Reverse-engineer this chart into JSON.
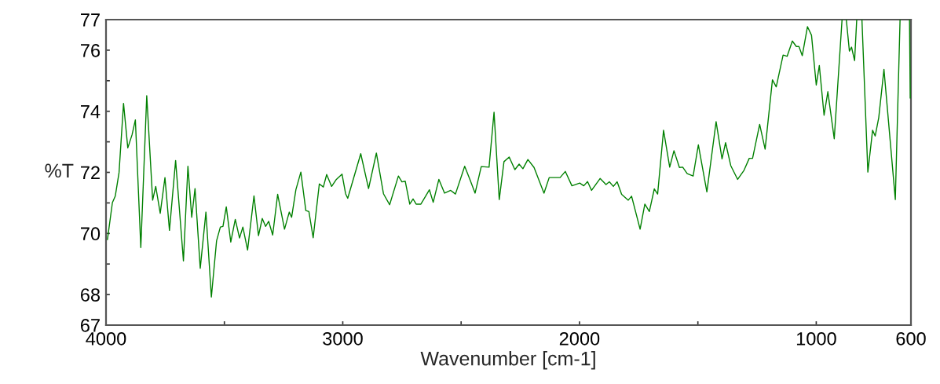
{
  "chart_data": {
    "type": "line",
    "xlabel": "Wavenumber [cm-1]",
    "ylabel": "%T",
    "xlim": [
      4000,
      600
    ],
    "ylim": [
      67,
      77
    ],
    "xticks": [
      4000,
      {
        "value": 3500,
        "label": null
      },
      3000,
      {
        "value": 2500,
        "label": null
      },
      2000,
      {
        "value": 1500,
        "label": null
      },
      1000,
      600
    ],
    "yticks": [
      67,
      68,
      {
        "value": 69,
        "label": null
      },
      70,
      {
        "value": 71,
        "label": null
      },
      72,
      {
        "value": 73,
        "label": null
      },
      74,
      {
        "value": 75,
        "label": null
      },
      76,
      77
    ],
    "x": [
      3994,
      3973,
      3961,
      3945,
      3926,
      3908,
      3890,
      3876,
      3853,
      3828,
      3803,
      3790,
      3771,
      3751,
      3732,
      3706,
      3673,
      3654,
      3638,
      3624,
      3602,
      3578,
      3555,
      3533,
      3517,
      3506,
      3492,
      3473,
      3454,
      3436,
      3422,
      3402,
      3375,
      3356,
      3340,
      3326,
      3313,
      3296,
      3275,
      3246,
      3226,
      3216,
      3198,
      3177,
      3156,
      3143,
      3125,
      3099,
      3082,
      3068,
      3047,
      3027,
      3003,
      2988,
      2979,
      2924,
      2891,
      2858,
      2828,
      2802,
      2765,
      2750,
      2736,
      2717,
      2703,
      2690,
      2670,
      2634,
      2618,
      2594,
      2570,
      2544,
      2524,
      2485,
      2463,
      2441,
      2415,
      2382,
      2361,
      2339,
      2319,
      2297,
      2273,
      2255,
      2239,
      2218,
      2192,
      2150,
      2128,
      2082,
      2060,
      2032,
      1999,
      1982,
      1966,
      1949,
      1913,
      1888,
      1874,
      1857,
      1841,
      1822,
      1794,
      1780,
      1744,
      1724,
      1705,
      1684,
      1670,
      1645,
      1619,
      1601,
      1578,
      1564,
      1545,
      1520,
      1498,
      1462,
      1423,
      1398,
      1383,
      1361,
      1332,
      1305,
      1283,
      1269,
      1239,
      1216,
      1185,
      1169,
      1140,
      1123,
      1101,
      1084,
      1073,
      1059,
      1037,
      1020,
      1000,
      987,
      967,
      951,
      924,
      891,
      882,
      873,
      860,
      851,
      838,
      829,
      818,
      807,
      782,
      762,
      751,
      736,
      714,
      666,
      646,
      625,
      606,
      603
    ],
    "series": [
      {
        "color": "#008000",
        "values": [
          69.8,
          71.01,
          71.22,
          71.99,
          74.26,
          72.8,
          73.23,
          73.72,
          69.54,
          74.51,
          71.09,
          71.54,
          70.66,
          71.83,
          70.1,
          72.39,
          69.1,
          72.2,
          70.53,
          71.47,
          68.86,
          70.7,
          67.92,
          69.76,
          70.21,
          70.23,
          70.87,
          69.72,
          70.46,
          69.85,
          70.21,
          69.46,
          71.23,
          69.93,
          70.49,
          70.23,
          70.4,
          69.95,
          71.28,
          70.14,
          70.7,
          70.53,
          71.43,
          72.01,
          70.75,
          70.72,
          69.86,
          71.62,
          71.52,
          71.93,
          71.54,
          71.77,
          71.94,
          71.3,
          71.15,
          72.61,
          71.47,
          72.63,
          71.3,
          70.94,
          71.88,
          71.69,
          71.71,
          70.96,
          71.13,
          70.96,
          70.96,
          71.43,
          71.02,
          71.77,
          71.32,
          71.41,
          71.29,
          72.2,
          71.77,
          71.32,
          72.19,
          72.17,
          73.97,
          71.11,
          72.35,
          72.5,
          72.09,
          72.27,
          72.12,
          72.42,
          72.16,
          71.32,
          71.83,
          71.83,
          72.03,
          71.56,
          71.65,
          71.56,
          71.7,
          71.41,
          71.8,
          71.6,
          71.69,
          71.54,
          71.69,
          71.28,
          71.09,
          71.22,
          70.14,
          70.96,
          70.72,
          71.46,
          71.29,
          73.38,
          72.17,
          72.71,
          72.16,
          72.17,
          71.96,
          71.88,
          72.9,
          71.36,
          73.66,
          72.44,
          72.97,
          72.22,
          71.77,
          72.07,
          72.46,
          72.46,
          73.57,
          72.76,
          75.03,
          74.8,
          75.84,
          75.8,
          76.3,
          76.12,
          76.12,
          75.82,
          76.77,
          76.49,
          74.86,
          75.5,
          73.87,
          74.64,
          73.1,
          77,
          null,
          77,
          75.97,
          76.1,
          75.66,
          77,
          null,
          77,
          72.01,
          73.38,
          73.19,
          73.79,
          75.37,
          71.11,
          77,
          null,
          77,
          74.43
        ]
      }
    ]
  }
}
